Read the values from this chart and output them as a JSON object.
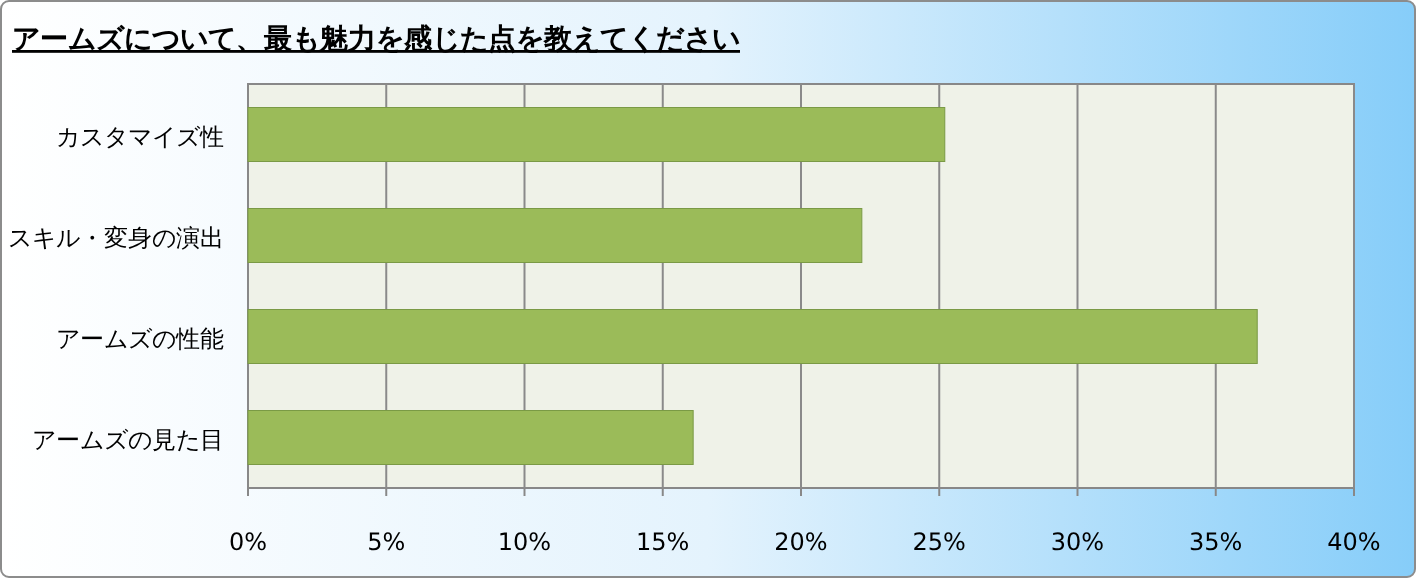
{
  "chart_data": {
    "type": "bar",
    "orientation": "horizontal",
    "title": "アームズについて、最も魅力を感じた点を教えてください",
    "categories": [
      "カスタマイズ性",
      "スキル・変身の演出",
      "アームズの性能",
      "アームズの見た目"
    ],
    "values": [
      25.2,
      22.2,
      36.5,
      16.1
    ],
    "color": "#9bbb59",
    "xlim": [
      0,
      40
    ],
    "xticks": [
      {
        "value": 0,
        "label": "0%"
      },
      {
        "value": 5,
        "label": "5%"
      },
      {
        "value": 10,
        "label": "10%"
      },
      {
        "value": 15,
        "label": "15%"
      },
      {
        "value": 20,
        "label": "20%"
      },
      {
        "value": 25,
        "label": "25%"
      },
      {
        "value": 30,
        "label": "30%"
      },
      {
        "value": 35,
        "label": "35%"
      },
      {
        "value": 40,
        "label": "40%"
      }
    ],
    "grid": "x"
  }
}
